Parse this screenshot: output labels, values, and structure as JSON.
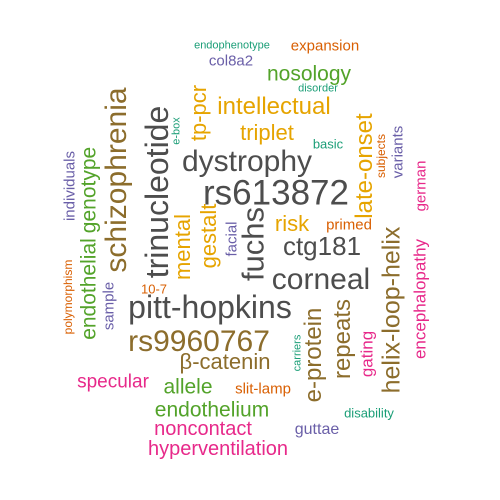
{
  "palette": {
    "gray": "#4d4d4d",
    "brown": "#8c6d2c",
    "gold": "#e6a400",
    "green": "#53a32a",
    "magenta": "#e7298a",
    "teal": "#1b9e77",
    "purple": "#6a5fa8",
    "orange": "#d95f02"
  },
  "words": {
    "rs613872": "rs613872",
    "pitt_hopkins": "pitt-hopkins",
    "trinucleotide": "trinucleotide",
    "dystrophy": "dystrophy",
    "schizophrenia": "schizophrenia",
    "fuchs": "fuchs",
    "corneal": "corneal",
    "ctg181": "ctg181",
    "rs9960767": "rs9960767",
    "beta_catenin": "β-catenin",
    "helix_loop_helix": "helix-loop-helix",
    "e_protein": "e-protein",
    "repeats": "repeats",
    "late_onset": "late-onset",
    "intellectual": "intellectual",
    "triplet": "triplet",
    "tp_pcr": "tp-pcr",
    "gestalt": "gestalt",
    "mental": "mental",
    "risk": "risk",
    "nosology": "nosology",
    "genotype": "genotype",
    "endothelial": "endothelial",
    "allele": "allele",
    "endothelium": "endothelium",
    "specular": "specular",
    "noncontact": "noncontact",
    "hyperventilation": "hyperventilation",
    "encephalopathy": "encephalopathy",
    "gating": "gating",
    "german": "german",
    "variants": "variants",
    "subjects": "subjects",
    "primed": "primed",
    "basic": "basic",
    "individuals": "individuals",
    "sample": "sample",
    "polymorphism": "polymorphism",
    "ten_minus_7": "10-7",
    "facial": "facial",
    "carriers": "carriers",
    "e_box": "e-box",
    "slit_lamp": "slit-lamp",
    "guttae": "guttae",
    "disability": "disability",
    "col8a2": "col8a2",
    "expansion": "expansion",
    "endophenotype": "endophenotype",
    "disorder": "disorder"
  }
}
